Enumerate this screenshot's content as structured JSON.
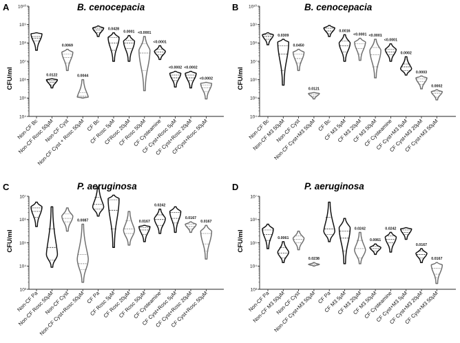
{
  "colors": {
    "black": "#111111",
    "gray": "#707070",
    "axis": "#222222"
  },
  "chart_data": [
    {
      "panel": "A",
      "title": "B. cenocepacia",
      "ylabel": "CFU/ml",
      "type": "violin",
      "yscale": "log",
      "ylim_exp": [
        4,
        10
      ],
      "ytick_labels": [
        "10⁴",
        "10⁵",
        "10⁶",
        "10⁷",
        "10⁸",
        "10⁹",
        "10¹⁰"
      ],
      "groups": [
        {
          "name": "Non-CF Bc",
          "color": "black",
          "min": 7.6,
          "q1": 8.1,
          "median": 8.25,
          "q3": 8.35,
          "max": 8.55,
          "wide": 8.5,
          "pval": ""
        },
        {
          "name": "Non-CF Rosc 50µM",
          "color": "black",
          "min": 5.55,
          "q1": 5.7,
          "median": 5.85,
          "q3": 5.95,
          "max": 6.05,
          "wide": 6.0,
          "pval": "0.0122"
        },
        {
          "name": "Non-CF Cyst",
          "color": "gray",
          "min": 6.5,
          "q1": 6.9,
          "median": 7.2,
          "q3": 7.4,
          "max": 7.65,
          "wide": 7.5,
          "pval": "0.0069"
        },
        {
          "name": "Non-CF Cyst + Rosc 50µM",
          "color": "gray",
          "min": 5.0,
          "q1": 5.05,
          "median": 5.1,
          "q3": 5.3,
          "max": 6.0,
          "wide": 5.05,
          "pval": "0.0044"
        },
        {
          "name": "CF Bc",
          "color": "black",
          "min": 8.35,
          "q1": 8.55,
          "median": 8.7,
          "q3": 8.8,
          "max": 8.92,
          "wide": 8.82,
          "pval": ""
        },
        {
          "name": "CF Rosc 5µM",
          "color": "black",
          "min": 7.0,
          "q1": 7.6,
          "median": 8.0,
          "q3": 8.3,
          "max": 8.55,
          "wide": 8.3,
          "pval": "0.0428"
        },
        {
          "name": "CFRosc 20µM",
          "color": "black",
          "min": 7.0,
          "q1": 7.7,
          "median": 8.0,
          "q3": 8.15,
          "max": 8.4,
          "wide": 8.1,
          "pval": "0.0001"
        },
        {
          "name": "CF Rosc 50µM",
          "color": "gray",
          "min": 5.4,
          "q1": 6.5,
          "median": 7.45,
          "q3": 7.95,
          "max": 8.35,
          "wide": 7.6,
          "pval": "<0.0001"
        },
        {
          "name": "CF Cysteamine",
          "color": "black",
          "min": 7.1,
          "q1": 7.35,
          "median": 7.5,
          "q3": 7.65,
          "max": 7.85,
          "wide": 7.55,
          "pval": "<0.0001"
        },
        {
          "name": "CF Cyst+Rosc 5µM",
          "color": "black",
          "min": 5.6,
          "q1": 5.95,
          "median": 6.1,
          "q3": 6.25,
          "max": 6.45,
          "wide": 6.35,
          "pval": "<0.0002"
        },
        {
          "name": "CF Cyst+Rosc 20µM",
          "color": "black",
          "min": 5.55,
          "q1": 5.95,
          "median": 6.1,
          "q3": 6.25,
          "max": 6.45,
          "wide": 6.35,
          "pval": "<0.0002"
        },
        {
          "name": "CFCyst+Rosc 50µM",
          "color": "gray",
          "min": 4.95,
          "q1": 5.35,
          "median": 5.55,
          "q3": 5.7,
          "max": 5.85,
          "wide": 5.8,
          "pval": "<0.0002"
        }
      ]
    },
    {
      "panel": "B",
      "title": "B. cenocepacia",
      "ylabel": "CFU/ml",
      "type": "violin",
      "yscale": "log",
      "ylim_exp": [
        4,
        10
      ],
      "ytick_labels": [
        "10⁴",
        "10⁵",
        "10⁶",
        "10⁷",
        "10⁸",
        "10⁹",
        "10¹⁰"
      ],
      "groups": [
        {
          "name": "Non-CF Bc",
          "color": "black",
          "min": 7.9,
          "q1": 8.2,
          "median": 8.35,
          "q3": 8.45,
          "max": 8.55,
          "wide": 8.45,
          "pval": ""
        },
        {
          "name": "Non-CF M3 50µM",
          "color": "black",
          "min": 5.7,
          "q1": 6.5,
          "median": 7.4,
          "q3": 7.85,
          "max": 8.2,
          "wide": 8.05,
          "pval": "0.0309"
        },
        {
          "name": "Non-CF Cyst",
          "color": "gray",
          "min": 6.5,
          "q1": 6.9,
          "median": 7.15,
          "q3": 7.4,
          "max": 7.65,
          "wide": 7.5,
          "pval": "0.0450"
        },
        {
          "name": "Non-CF Cyst+M3 50µM",
          "color": "gray",
          "min": 4.95,
          "q1": 5.05,
          "median": 5.1,
          "q3": 5.2,
          "max": 5.3,
          "wide": 5.25,
          "pval": "0.0121"
        },
        {
          "name": "CF Bc",
          "color": "black",
          "min": 8.35,
          "q1": 8.5,
          "median": 8.65,
          "q3": 8.8,
          "max": 8.95,
          "wide": 8.82,
          "pval": ""
        },
        {
          "name": "CF M3 5µM",
          "color": "black",
          "min": 7.0,
          "q1": 7.5,
          "median": 7.85,
          "q3": 8.1,
          "max": 8.45,
          "wide": 8.0,
          "pval": "0.0016"
        },
        {
          "name": "CF M3 20µM",
          "color": "gray",
          "min": 7.05,
          "q1": 7.4,
          "median": 7.7,
          "q3": 7.95,
          "max": 8.25,
          "wide": 8.05,
          "pval": "<0.0001"
        },
        {
          "name": "CF M3 50µM",
          "color": "gray",
          "min": 6.1,
          "q1": 6.7,
          "median": 7.35,
          "q3": 7.75,
          "max": 8.2,
          "wide": 7.6,
          "pval": "<0.0001"
        },
        {
          "name": "CF Cysteamine",
          "color": "black",
          "min": 7.0,
          "q1": 7.35,
          "median": 7.5,
          "q3": 7.65,
          "max": 7.95,
          "wide": 7.65,
          "pval": "<0.0001"
        },
        {
          "name": "CF Cyst+M3 5µM",
          "color": "black",
          "min": 6.25,
          "q1": 6.5,
          "median": 6.7,
          "q3": 6.85,
          "max": 7.25,
          "wide": 6.6,
          "pval": "0.0002"
        },
        {
          "name": "CF Cyst+M3 20µM",
          "color": "gray",
          "min": 5.5,
          "q1": 5.75,
          "median": 5.9,
          "q3": 6.05,
          "max": 6.2,
          "wide": 6.1,
          "pval": "0.0003"
        },
        {
          "name": "CF Cyst+M3 50µM",
          "color": "gray",
          "min": 4.9,
          "q1": 5.05,
          "median": 5.25,
          "q3": 5.35,
          "max": 5.45,
          "wide": 5.35,
          "pval": "0.0002"
        }
      ]
    },
    {
      "panel": "C",
      "title": "P. aeruginosa",
      "ylabel": "CFU/ml",
      "type": "violin",
      "yscale": "log",
      "ylim_exp": [
        3,
        7
      ],
      "ytick_labels": [
        "10³",
        "10⁴",
        "10⁵",
        "10⁶",
        "10⁷"
      ],
      "groups": [
        {
          "name": "Non-CF Pa",
          "color": "black",
          "min": 5.7,
          "q1": 6.1,
          "median": 6.35,
          "q3": 6.5,
          "max": 6.75,
          "wide": 6.55,
          "pval": ""
        },
        {
          "name": "Non-CF Rosc 50µM",
          "color": "black",
          "min": 3.95,
          "q1": 4.25,
          "median": 4.8,
          "q3": 5.6,
          "max": 6.55,
          "wide": 4.5,
          "pval": ""
        },
        {
          "name": "Non-CF Cyst",
          "color": "gray",
          "min": 5.5,
          "q1": 5.9,
          "median": 6.05,
          "q3": 6.25,
          "max": 6.5,
          "wide": 6.15,
          "pval": ""
        },
        {
          "name": "Non-CF Cyst+Rosc 50µM",
          "color": "gray",
          "min": 3.3,
          "q1": 3.85,
          "median": 4.1,
          "q3": 4.5,
          "max": 5.8,
          "wide": 4.3,
          "pval": "0.0087"
        },
        {
          "name": "CF Pa",
          "color": "black",
          "min": 6.15,
          "q1": 6.45,
          "median": 6.65,
          "q3": 6.95,
          "max": 7.4,
          "wide": 6.55,
          "pval": ""
        },
        {
          "name": "CF Rosc 5µM",
          "color": "black",
          "min": 4.8,
          "q1": 5.6,
          "median": 6.4,
          "q3": 6.85,
          "max": 7.05,
          "wide": 6.9,
          "pval": ""
        },
        {
          "name": "CF Rosc 20µM",
          "color": "gray",
          "min": 4.9,
          "q1": 5.4,
          "median": 5.6,
          "q3": 5.95,
          "max": 6.35,
          "wide": 5.55,
          "pval": ""
        },
        {
          "name": "CF Rosc 50µM",
          "color": "black",
          "min": 5.05,
          "q1": 5.35,
          "median": 5.55,
          "q3": 5.65,
          "max": 5.75,
          "wide": 5.7,
          "pval": "0.0167"
        },
        {
          "name": "CF Cysteamine",
          "color": "black",
          "min": 5.4,
          "q1": 5.75,
          "median": 6.0,
          "q3": 6.2,
          "max": 6.45,
          "wide": 6.05,
          "pval": "0.0242"
        },
        {
          "name": "CF Cyst+Rosc 5µM",
          "color": "black",
          "min": 5.45,
          "q1": 5.85,
          "median": 6.05,
          "q3": 6.3,
          "max": 6.55,
          "wide": 6.35,
          "pval": ""
        },
        {
          "name": "CF Cyst+Rosc 20µM",
          "color": "gray",
          "min": 5.45,
          "q1": 5.6,
          "median": 5.7,
          "q3": 5.8,
          "max": 5.9,
          "wide": 5.8,
          "pval": "0.0167"
        },
        {
          "name": "CF Cyst+Rosc 50µM",
          "color": "gray",
          "min": 4.3,
          "q1": 4.65,
          "median": 4.95,
          "q3": 5.4,
          "max": 5.75,
          "wide": 5.5,
          "pval": "0.0167"
        }
      ]
    },
    {
      "panel": "D",
      "title": "P. aeruginosa",
      "ylabel": "CFU/ml",
      "type": "violin",
      "yscale": "log",
      "ylim_exp": [
        3,
        7
      ],
      "ytick_labels": [
        "10³",
        "10⁴",
        "10⁵",
        "10⁶",
        "10⁷"
      ],
      "groups": [
        {
          "name": "Non-CF Pa",
          "color": "black",
          "min": 4.75,
          "q1": 5.1,
          "median": 5.35,
          "q3": 5.55,
          "max": 5.8,
          "wide": 5.6,
          "pval": ""
        },
        {
          "name": "Non-CF M3 50µM",
          "color": "black",
          "min": 4.15,
          "q1": 4.35,
          "median": 4.55,
          "q3": 4.8,
          "max": 5.05,
          "wide": 4.6,
          "pval": "0.0061"
        },
        {
          "name": "Non-CF Cyst",
          "color": "gray",
          "min": 4.7,
          "q1": 5.0,
          "median": 5.15,
          "q3": 5.3,
          "max": 5.5,
          "wide": 5.2,
          "pval": ""
        },
        {
          "name": "Non-CF Cyst+M3 50µM",
          "color": "gray",
          "min": 4.0,
          "q1": 4.03,
          "median": 4.08,
          "q3": 4.12,
          "max": 4.15,
          "wide": 4.07,
          "pval": "0.0238"
        },
        {
          "name": "CF Pa",
          "color": "black",
          "min": 5.05,
          "q1": 5.35,
          "median": 5.6,
          "q3": 6.1,
          "max": 6.75,
          "wide": 5.5,
          "pval": ""
        },
        {
          "name": "CF M3 5µM",
          "color": "black",
          "min": 4.1,
          "q1": 4.65,
          "median": 5.2,
          "q3": 5.5,
          "max": 6.05,
          "wide": 5.65,
          "pval": ""
        },
        {
          "name": "CF M3 20µM",
          "color": "gray",
          "min": 4.1,
          "q1": 4.35,
          "median": 4.75,
          "q3": 5.1,
          "max": 5.45,
          "wide": 4.7,
          "pval": "0.0242"
        },
        {
          "name": "CF M3 50µM",
          "color": "black",
          "min": 4.5,
          "q1": 4.65,
          "median": 4.75,
          "q3": 4.85,
          "max": 4.95,
          "wide": 4.8,
          "pval": "0.0061"
        },
        {
          "name": "CF Cysteamine",
          "color": "black",
          "min": 4.6,
          "q1": 5.0,
          "median": 5.15,
          "q3": 5.3,
          "max": 5.45,
          "wide": 5.25,
          "pval": "0.0242"
        },
        {
          "name": "CF Cyst+M3 5µM",
          "color": "black",
          "min": 5.15,
          "q1": 5.35,
          "median": 5.45,
          "q3": 5.55,
          "max": 5.65,
          "wide": 5.6,
          "pval": ""
        },
        {
          "name": "CF Cyst+M3 20µM",
          "color": "black",
          "min": 4.15,
          "q1": 4.35,
          "median": 4.5,
          "q3": 4.65,
          "max": 4.75,
          "wide": 4.55,
          "pval": "0.0167"
        },
        {
          "name": "CF Cyst+M3 50µM",
          "color": "gray",
          "min": 3.25,
          "q1": 3.5,
          "median": 3.65,
          "q3": 3.9,
          "max": 4.15,
          "wide": 4.05,
          "pval": "0.0167"
        }
      ]
    }
  ]
}
